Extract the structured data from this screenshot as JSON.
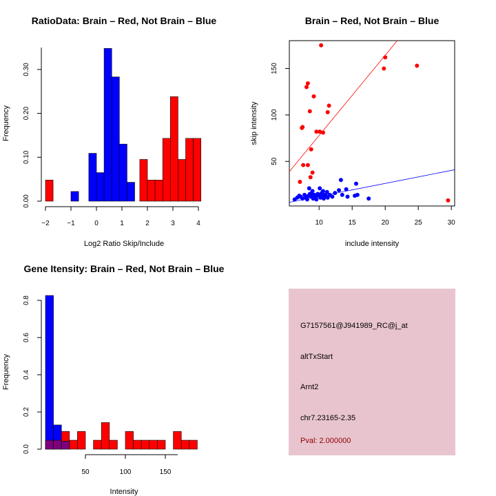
{
  "colors": {
    "red": "#ff0000",
    "blue": "#0000ff",
    "purple": "#7f007f",
    "panel": "#e8c4ce",
    "pval": "#8b0000"
  },
  "chart_data": [
    {
      "type": "bar",
      "title": "RatioData: Brain – Red, Not Brain – Blue",
      "xlabel": "Log2 Ratio Skip/Include",
      "ylabel": "Frequency",
      "xlim": [
        -2,
        4
      ],
      "ylim": [
        0,
        0.35
      ],
      "xticks": [
        "−2",
        "−1",
        "0",
        "1",
        "2",
        "3",
        "4"
      ],
      "yticks": [
        "0.00",
        "0.10",
        "0.20",
        "0.30"
      ],
      "series": [
        {
          "name": "Brain",
          "color": "red",
          "bins": [
            [
              -2.0,
              -1.7,
              0.048
            ],
            [
              1.7,
              2.0,
              0.095
            ],
            [
              2.0,
              2.3,
              0.048
            ],
            [
              2.3,
              2.6,
              0.048
            ],
            [
              2.6,
              2.9,
              0.143
            ],
            [
              2.9,
              3.2,
              0.238
            ],
            [
              3.2,
              3.5,
              0.095
            ],
            [
              3.5,
              3.8,
              0.143
            ],
            [
              3.8,
              4.1,
              0.143
            ]
          ]
        },
        {
          "name": "Not Brain",
          "color": "blue",
          "bins": [
            [
              -1.0,
              -0.7,
              0.022
            ],
            [
              -0.3,
              0.0,
              0.109
            ],
            [
              0.0,
              0.3,
              0.065
            ],
            [
              0.3,
              0.6,
              0.348
            ],
            [
              0.6,
              0.9,
              0.283
            ],
            [
              0.9,
              1.2,
              0.13
            ],
            [
              1.2,
              1.5,
              0.043
            ]
          ]
        }
      ]
    },
    {
      "type": "scatter",
      "title": "Brain – Red, Not Brain – Blue",
      "xlabel": "include intensity",
      "ylabel": "skip intensity",
      "xlim": [
        5.5,
        30.5
      ],
      "ylim": [
        2,
        180
      ],
      "xticks": [
        "10",
        "15",
        "20",
        "25",
        "30"
      ],
      "yticks": [
        "50",
        "100",
        "150"
      ],
      "series": [
        {
          "name": "Brain",
          "color": "red",
          "points": [
            [
              10.3,
              175
            ],
            [
              8.3,
              134
            ],
            [
              8.1,
              130
            ],
            [
              9.2,
              120
            ],
            [
              20.0,
              162
            ],
            [
              19.8,
              150
            ],
            [
              24.8,
              153
            ],
            [
              11.5,
              110
            ],
            [
              11.3,
              103
            ],
            [
              8.6,
              104
            ],
            [
              9.6,
              82
            ],
            [
              10.1,
              82
            ],
            [
              10.6,
              81
            ],
            [
              7.5,
              87
            ],
            [
              7.4,
              86
            ],
            [
              8.8,
              63
            ],
            [
              9.0,
              38
            ],
            [
              8.7,
              33
            ],
            [
              7.6,
              46
            ],
            [
              8.3,
              46
            ],
            [
              7.1,
              28
            ],
            [
              29.5,
              8
            ]
          ]
        },
        {
          "name": "Not Brain",
          "color": "blue",
          "points": [
            [
              6.3,
              9
            ],
            [
              6.7,
              11
            ],
            [
              7.0,
              13
            ],
            [
              7.2,
              12
            ],
            [
              7.5,
              10
            ],
            [
              7.8,
              14
            ],
            [
              8.0,
              11
            ],
            [
              8.2,
              9
            ],
            [
              8.4,
              13
            ],
            [
              8.5,
              21
            ],
            [
              8.8,
              12
            ],
            [
              8.9,
              16
            ],
            [
              9.1,
              10
            ],
            [
              9.3,
              14
            ],
            [
              9.5,
              12
            ],
            [
              9.6,
              9
            ],
            [
              9.8,
              15
            ],
            [
              10.0,
              13
            ],
            [
              10.1,
              21
            ],
            [
              10.2,
              11
            ],
            [
              10.4,
              16
            ],
            [
              10.5,
              12
            ],
            [
              10.7,
              10
            ],
            [
              10.8,
              14
            ],
            [
              11.0,
              13
            ],
            [
              11.2,
              17
            ],
            [
              11.3,
              11
            ],
            [
              11.6,
              14
            ],
            [
              12.0,
              12
            ],
            [
              12.4,
              16
            ],
            [
              13.0,
              19
            ],
            [
              13.3,
              30
            ],
            [
              13.5,
              14
            ],
            [
              14.1,
              20
            ],
            [
              14.3,
              12
            ],
            [
              15.4,
              13
            ],
            [
              15.6,
              26
            ],
            [
              15.8,
              14
            ],
            [
              17.5,
              10
            ],
            [
              9.0,
              18
            ],
            [
              8.6,
              15
            ],
            [
              10.6,
              18
            ]
          ]
        }
      ],
      "lines": [
        {
          "color": "red",
          "from": [
            5.5,
            39
          ],
          "to": [
            30.5,
            255
          ]
        },
        {
          "color": "blue",
          "from": [
            5.5,
            6
          ],
          "to": [
            30.5,
            41
          ]
        }
      ]
    },
    {
      "type": "bar",
      "title": "Gene Itensity: Brain – Red, Not Brain – Blue",
      "xlabel": "Intensity",
      "ylabel": "Frequency",
      "xlim": [
        5,
        175
      ],
      "ylim": [
        0,
        0.85
      ],
      "xticks": [
        "50",
        "100",
        "150"
      ],
      "yticks": [
        "0.0",
        "0.2",
        "0.4",
        "0.6",
        "0.8"
      ],
      "series": [
        {
          "name": "Brain",
          "color": "red",
          "bins": [
            [
              10,
              20,
              0.048
            ],
            [
              20,
              30,
              0.048
            ],
            [
              30,
              40,
              0.095
            ],
            [
              40,
              50,
              0.048
            ],
            [
              50,
              60,
              0.095
            ],
            [
              70,
              80,
              0.048
            ],
            [
              80,
              90,
              0.143
            ],
            [
              90,
              100,
              0.048
            ],
            [
              110,
              120,
              0.095
            ],
            [
              120,
              130,
              0.048
            ],
            [
              130,
              140,
              0.048
            ],
            [
              140,
              150,
              0.048
            ],
            [
              150,
              160,
              0.048
            ],
            [
              170,
              180,
              0.095
            ],
            [
              180,
              190,
              0.048
            ],
            [
              190,
              200,
              0.048
            ]
          ]
        },
        {
          "name": "Not Brain",
          "color": "blue",
          "bins": [
            [
              10,
              20,
              0.826
            ],
            [
              20,
              30,
              0.13
            ],
            [
              30,
              40,
              0.043
            ]
          ]
        }
      ]
    }
  ],
  "info_panel": {
    "probe": "G7157561@J941989_RC@j_at",
    "event": "altTxStart",
    "gene": "Arnt2",
    "location": "chr7.23165-2.35",
    "pval": "Pval: 2.000000"
  }
}
